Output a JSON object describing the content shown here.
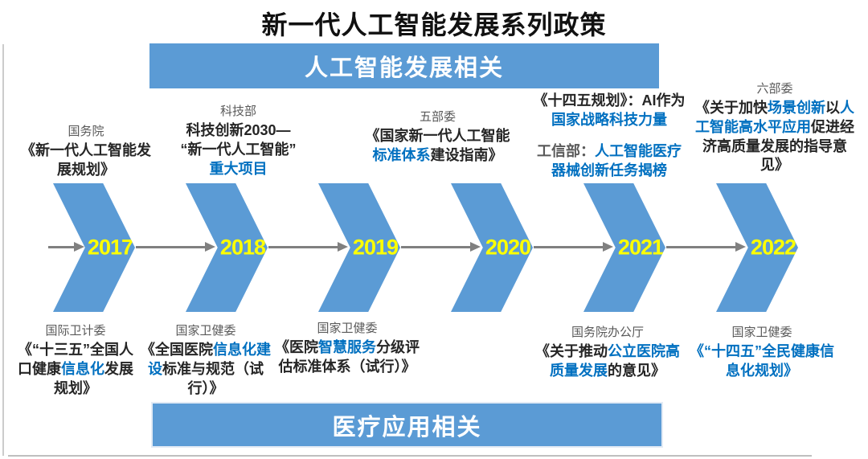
{
  "title": "新一代人工智能发展系列政策",
  "banners": {
    "top": "人工智能发展相关",
    "bottom": "医疗应用相关"
  },
  "years": [
    "2017",
    "2018",
    "2019",
    "2020",
    "2021",
    "2022"
  ],
  "colors": {
    "chevron_blue": "#5B9BD5",
    "accent_blue": "#0070C0",
    "year_yellow": "#FFFF00",
    "org_gray": "#595959",
    "arrow_gray": "#808080",
    "text_dark": "#252525"
  },
  "top_annotations": [
    {
      "org": "国务院",
      "segments": [
        {
          "t": "《新一代人工智能发展规划》",
          "c": "dark"
        }
      ]
    },
    {
      "org": "科技部",
      "segments": [
        {
          "t": "科技创新2030—\n“新一代人工智能”\n",
          "c": "dark"
        },
        {
          "t": "重大项目",
          "c": "blue"
        }
      ]
    },
    {
      "org": "五部委",
      "segments": [
        {
          "t": "《国家新一代人工智能",
          "c": "dark"
        },
        {
          "t": "标准体系",
          "c": "blue"
        },
        {
          "t": "建设指南》",
          "c": "dark"
        }
      ]
    },
    {
      "org": "",
      "segments": [
        {
          "t": "《十四五规划》：AI作为",
          "c": "dark"
        },
        {
          "t": "国家战略科技力量",
          "c": "blue"
        }
      ]
    },
    {
      "org": "",
      "segments": [
        {
          "t": "工信部：",
          "c": "gray"
        },
        {
          "t": "人工智能医疗器械创新任务揭榜",
          "c": "blue"
        }
      ]
    },
    {
      "org": "六部委",
      "segments": [
        {
          "t": "《关于加快",
          "c": "dark"
        },
        {
          "t": "场景创新",
          "c": "blue"
        },
        {
          "t": "以",
          "c": "dark"
        },
        {
          "t": "人工智能高水平应用",
          "c": "blue"
        },
        {
          "t": "促进经济高质量发展的指导意见》",
          "c": "dark"
        }
      ]
    }
  ],
  "bottom_annotations": [
    {
      "org": "国际卫计委",
      "segments": [
        {
          "t": "《“十三五”全国人口健康",
          "c": "dark"
        },
        {
          "t": "信息化",
          "c": "blue"
        },
        {
          "t": "发展规划》",
          "c": "dark"
        }
      ]
    },
    {
      "org": "国家卫健委",
      "segments": [
        {
          "t": "《全国医院",
          "c": "dark"
        },
        {
          "t": "信息化建设",
          "c": "blue"
        },
        {
          "t": "标准与规范（试行）》",
          "c": "dark"
        }
      ]
    },
    {
      "org": "国家卫健委",
      "segments": [
        {
          "t": "《医院",
          "c": "dark"
        },
        {
          "t": "智慧服务",
          "c": "blue"
        },
        {
          "t": "分级评估标准体系（试行）》",
          "c": "dark"
        }
      ]
    },
    {
      "org": "国务院办公厅",
      "segments": [
        {
          "t": "《关于推动",
          "c": "dark"
        },
        {
          "t": "公立医院高质量发展",
          "c": "blue"
        },
        {
          "t": "的意见》",
          "c": "dark"
        }
      ]
    },
    {
      "org": "国家卫健委",
      "segments": [
        {
          "t": "《“十四五”全民健康信息化规划》",
          "c": "blue"
        }
      ]
    }
  ]
}
